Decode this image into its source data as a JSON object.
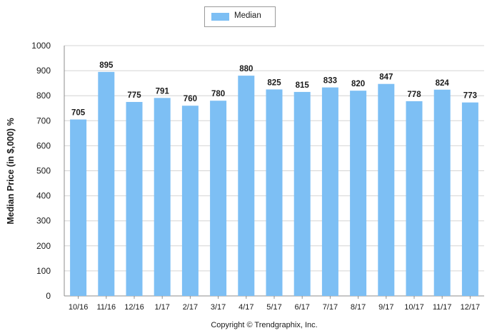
{
  "chart_data": {
    "type": "bar",
    "categories": [
      "10/16",
      "11/16",
      "12/16",
      "1/17",
      "2/17",
      "3/17",
      "4/17",
      "5/17",
      "6/17",
      "7/17",
      "8/17",
      "9/17",
      "10/17",
      "11/17",
      "12/17"
    ],
    "series": [
      {
        "name": "Median",
        "values": [
          705,
          895,
          775,
          791,
          760,
          780,
          880,
          825,
          815,
          833,
          820,
          847,
          778,
          824,
          773
        ]
      }
    ],
    "ylabel": "Median Price (in $,000) %",
    "xlabel": "",
    "ylim": [
      0,
      1000
    ],
    "yticks": [
      0,
      100,
      200,
      300,
      400,
      500,
      600,
      700,
      800,
      900,
      1000
    ],
    "grid": true,
    "legend": "top-center",
    "bar_color": "#7dbff4",
    "footer": "Copyright © Trendgraphix, Inc."
  }
}
